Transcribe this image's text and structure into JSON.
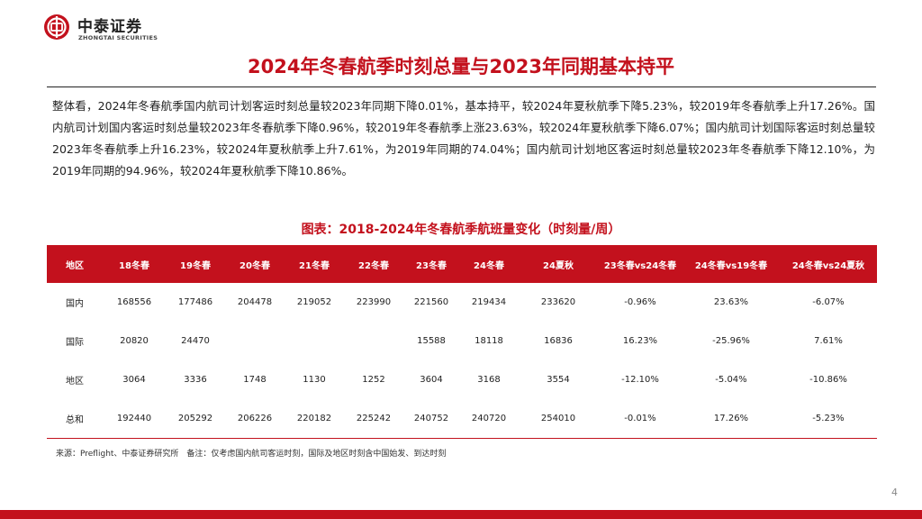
{
  "header": {
    "logo_cn": "中泰证券",
    "logo_en": "ZHONGTAI SECURITIES"
  },
  "colors": {
    "brand": "#c3111d"
  },
  "title": "2024年冬春航季时刻总量与2023年同期基本持平",
  "body_paragraph": "整体看，2024年冬春航季国内航司计划客运时刻总量较2023年同期下降0.01%，基本持平，较2024年夏秋航季下降5.23%，较2019年冬春航季上升17.26%。国内航司计划国内客运时刻总量较2023年冬春航季下降0.96%，较2019年冬春航季上涨23.63%，较2024年夏秋航季下降6.07%；国内航司计划国际客运时刻总量较2023年冬春航季上升16.23%，较2024年夏秋航季上升7.61%，为2019年同期的74.04%；国内航司计划地区客运时刻总量较2023年冬春航季下降12.10%，为2019年同期的94.96%，较2024年夏秋航季下降10.86%。",
  "table": {
    "title": "图表：2018-2024年冬春航季航班量变化（时刻量/周）",
    "headers": [
      "地区",
      "18冬春",
      "19冬春",
      "20冬春",
      "21冬春",
      "22冬春",
      "23冬春",
      "24冬春",
      "24夏秋",
      "23冬春vs24冬春",
      "24冬春vs19冬春",
      "24冬春vs24夏秋"
    ],
    "rows": [
      [
        "国内",
        "168556",
        "177486",
        "204478",
        "219052",
        "223990",
        "221560",
        "219434",
        "233620",
        "-0.96%",
        "23.63%",
        "-6.07%"
      ],
      [
        "国际",
        "20820",
        "24470",
        "",
        "",
        "",
        "15588",
        "18118",
        "16836",
        "16.23%",
        "-25.96%",
        "7.61%"
      ],
      [
        "地区",
        "3064",
        "3336",
        "1748",
        "1130",
        "1252",
        "3604",
        "3168",
        "3554",
        "-12.10%",
        "-5.04%",
        "-10.86%"
      ],
      [
        "总和",
        "192440",
        "205292",
        "206226",
        "220182",
        "225242",
        "240752",
        "240720",
        "254010",
        "-0.01%",
        "17.26%",
        "-5.23%"
      ]
    ]
  },
  "source": "来源：Preflight、中泰证券研究所　备注：仅考虑国内航司客运时刻，国际及地区时刻含中国始发、到达时刻",
  "page_number": "4"
}
